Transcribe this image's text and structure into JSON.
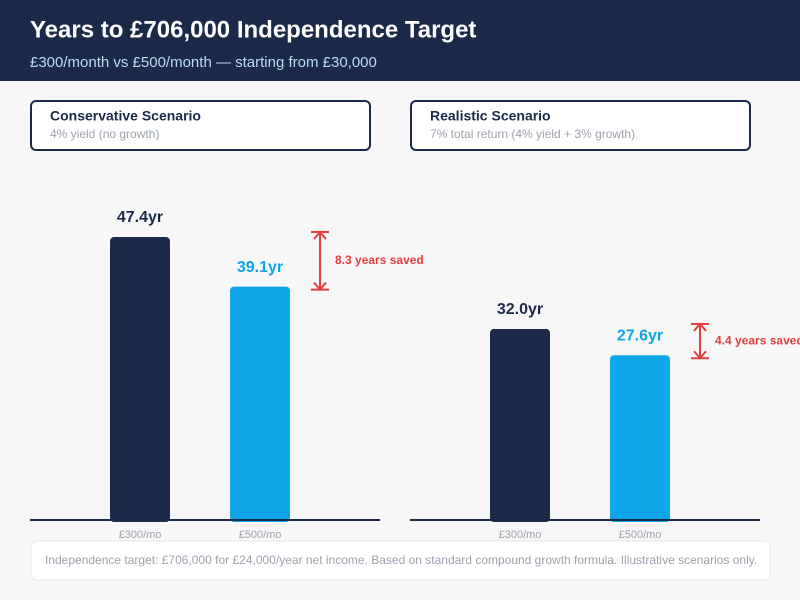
{
  "header": {
    "title": "Years to £706,000 Independence Target",
    "subtitle": "£300/month vs £500/month — starting from £30,000"
  },
  "chart_data": [
    {
      "type": "bar",
      "title": "Conservative Scenario",
      "subtitle": "4% yield (no growth)",
      "categories": [
        "£300/mo",
        "£500/mo"
      ],
      "values": [
        47.4,
        39.1
      ],
      "value_labels": [
        "47.4yr",
        "39.1yr"
      ],
      "colors": [
        "#1c2a4a",
        "#0ea5e9"
      ],
      "annotation": "8.3 years saved",
      "annotation_color": "#e53e3e"
    },
    {
      "type": "bar",
      "title": "Realistic Scenario",
      "subtitle": "7% total return (4% yield + 3% growth)",
      "categories": [
        "£300/mo",
        "£500/mo"
      ],
      "values": [
        32.0,
        27.6
      ],
      "value_labels": [
        "32.0yr",
        "27.6yr"
      ],
      "colors": [
        "#1c2a4a",
        "#0ea5e9"
      ],
      "annotation": "4.4 years saved",
      "annotation_color": "#e53e3e"
    }
  ],
  "footer": "Independence target: £706,000 for £24,000/year net income. Based on standard compound growth formula. Illustrative scenarios only."
}
